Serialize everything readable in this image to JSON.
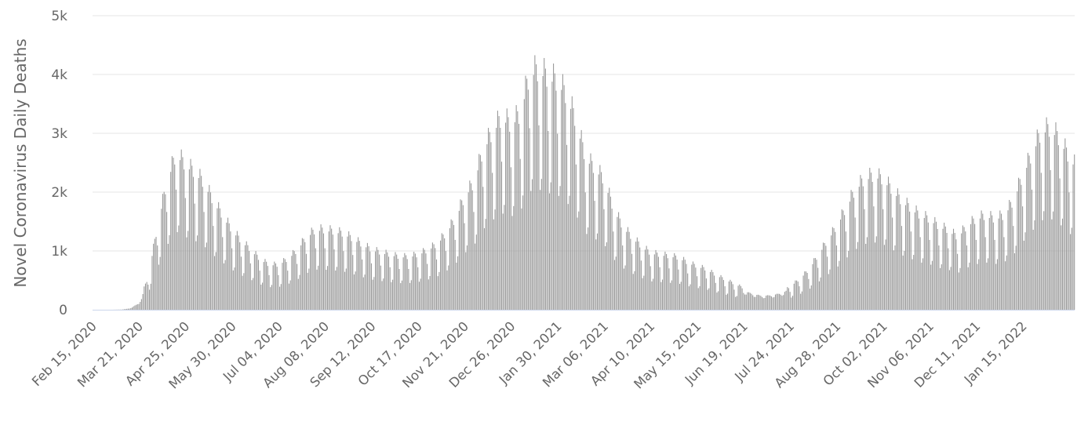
{
  "chart_data": {
    "type": "bar",
    "ylabel": "Novel Coronavirus Daily Deaths",
    "xlabel": "",
    "ylim": [
      0,
      5000
    ],
    "grid": true,
    "legend": "none",
    "bar_color": "#999999",
    "gridline_color": "#e6e6e6",
    "axis_color": "#ccd6eb",
    "x_start": "2020-02-15",
    "x_end": "2022-02-23",
    "ytick_values": [
      0,
      1000,
      2000,
      3000,
      4000,
      5000
    ],
    "ytick_labels": [
      "0",
      "1k",
      "2k",
      "3k",
      "4k",
      "5k"
    ],
    "xtick_dates": [
      "2020-02-15",
      "2020-03-21",
      "2020-04-25",
      "2020-05-30",
      "2020-07-04",
      "2020-08-08",
      "2020-09-12",
      "2020-10-17",
      "2020-11-21",
      "2020-12-26",
      "2021-01-30",
      "2021-03-06",
      "2021-04-10",
      "2021-05-15",
      "2021-06-19",
      "2021-07-24",
      "2021-08-28",
      "2021-10-02",
      "2021-11-06",
      "2021-12-11",
      "2022-01-15"
    ],
    "xtick_labels": [
      "Feb 15, 2020",
      "Mar 21, 2020",
      "Apr 25, 2020",
      "May 30, 2020",
      "Jul 04, 2020",
      "Aug 08, 2020",
      "Sep 12, 2020",
      "Oct 17, 2020",
      "Nov 21, 2020",
      "Dec 26, 2020",
      "Jan 30, 2021",
      "Mar 06, 2021",
      "Apr 10, 2021",
      "May 15, 2021",
      "Jun 19, 2021",
      "Jul 24, 2021",
      "Aug 28, 2021",
      "Oct 02, 2021",
      "Nov 06, 2021",
      "Dec 11, 2021",
      "Jan 15, 2022"
    ],
    "weekly_trend": [
      [
        "2020-02-15",
        0
      ],
      [
        "2020-02-29",
        0
      ],
      [
        "2020-03-08",
        3
      ],
      [
        "2020-03-14",
        20
      ],
      [
        "2020-03-21",
        100
      ],
      [
        "2020-03-28",
        450
      ],
      [
        "2020-04-04",
        1150
      ],
      [
        "2020-04-11",
        1750
      ],
      [
        "2020-04-18",
        2150
      ],
      [
        "2020-04-25",
        2000
      ],
      [
        "2020-05-02",
        1900
      ],
      [
        "2020-05-09",
        1750
      ],
      [
        "2020-05-16",
        1500
      ],
      [
        "2020-05-23",
        1300
      ],
      [
        "2020-05-30",
        1100
      ],
      [
        "2020-06-06",
        950
      ],
      [
        "2020-06-13",
        830
      ],
      [
        "2020-06-20",
        700
      ],
      [
        "2020-06-27",
        620
      ],
      [
        "2020-07-04",
        620
      ],
      [
        "2020-07-11",
        700
      ],
      [
        "2020-07-18",
        820
      ],
      [
        "2020-07-25",
        1000
      ],
      [
        "2020-08-01",
        1100
      ],
      [
        "2020-08-08",
        1100
      ],
      [
        "2020-08-15",
        1080
      ],
      [
        "2020-08-22",
        1050
      ],
      [
        "2020-08-29",
        980
      ],
      [
        "2020-09-05",
        900
      ],
      [
        "2020-09-12",
        830
      ],
      [
        "2020-09-19",
        790
      ],
      [
        "2020-09-26",
        760
      ],
      [
        "2020-10-03",
        730
      ],
      [
        "2020-10-10",
        730
      ],
      [
        "2020-10-17",
        760
      ],
      [
        "2020-10-24",
        820
      ],
      [
        "2020-10-31",
        900
      ],
      [
        "2020-11-07",
        1050
      ],
      [
        "2020-11-14",
        1250
      ],
      [
        "2020-11-21",
        1550
      ],
      [
        "2020-11-28",
        1750
      ],
      [
        "2020-12-05",
        2200
      ],
      [
        "2020-12-12",
        2450
      ],
      [
        "2020-12-19",
        2650
      ],
      [
        "2020-12-26",
        2550
      ],
      [
        "2021-01-02",
        2700
      ],
      [
        "2021-01-09",
        3250
      ],
      [
        "2021-01-16",
        3300
      ],
      [
        "2021-01-23",
        3200
      ],
      [
        "2021-01-30",
        3150
      ],
      [
        "2021-02-06",
        2950
      ],
      [
        "2021-02-13",
        2600
      ],
      [
        "2021-02-20",
        2100
      ],
      [
        "2021-02-27",
        1950
      ],
      [
        "2021-03-06",
        1800
      ],
      [
        "2021-03-13",
        1400
      ],
      [
        "2021-03-20",
        1150
      ],
      [
        "2021-03-27",
        1000
      ],
      [
        "2021-04-03",
        880
      ],
      [
        "2021-04-10",
        780
      ],
      [
        "2021-04-17",
        760
      ],
      [
        "2021-04-24",
        740
      ],
      [
        "2021-05-01",
        720
      ],
      [
        "2021-05-08",
        650
      ],
      [
        "2021-05-15",
        600
      ],
      [
        "2021-05-22",
        560
      ],
      [
        "2021-05-29",
        480
      ],
      [
        "2021-06-05",
        420
      ],
      [
        "2021-06-12",
        360
      ],
      [
        "2021-06-19",
        300
      ],
      [
        "2021-06-26",
        250
      ],
      [
        "2021-07-03",
        220
      ],
      [
        "2021-07-10",
        230
      ],
      [
        "2021-07-17",
        260
      ],
      [
        "2021-07-24",
        320
      ],
      [
        "2021-07-31",
        420
      ],
      [
        "2021-08-07",
        550
      ],
      [
        "2021-08-14",
        750
      ],
      [
        "2021-08-21",
        950
      ],
      [
        "2021-08-28",
        1150
      ],
      [
        "2021-09-04",
        1400
      ],
      [
        "2021-09-11",
        1650
      ],
      [
        "2021-09-18",
        1800
      ],
      [
        "2021-09-25",
        1850
      ],
      [
        "2021-10-02",
        1800
      ],
      [
        "2021-10-09",
        1650
      ],
      [
        "2021-10-16",
        1500
      ],
      [
        "2021-10-23",
        1400
      ],
      [
        "2021-10-30",
        1300
      ],
      [
        "2021-11-06",
        1250
      ],
      [
        "2021-11-13",
        1150
      ],
      [
        "2021-11-20",
        1100
      ],
      [
        "2021-11-27",
        1000
      ],
      [
        "2021-12-04",
        1150
      ],
      [
        "2021-12-11",
        1250
      ],
      [
        "2021-12-18",
        1300
      ],
      [
        "2021-12-25",
        1250
      ],
      [
        "2022-01-01",
        1300
      ],
      [
        "2022-01-08",
        1500
      ],
      [
        "2022-01-15",
        1850
      ],
      [
        "2022-01-22",
        2150
      ],
      [
        "2022-01-29",
        2450
      ],
      [
        "2022-02-05",
        2500
      ],
      [
        "2022-02-12",
        2350
      ],
      [
        "2022-02-19",
        2100
      ],
      [
        "2022-02-23",
        2000
      ]
    ],
    "weekday_factors": [
      0.62,
      0.68,
      1.22,
      1.32,
      1.27,
      1.18,
      0.95
    ]
  }
}
